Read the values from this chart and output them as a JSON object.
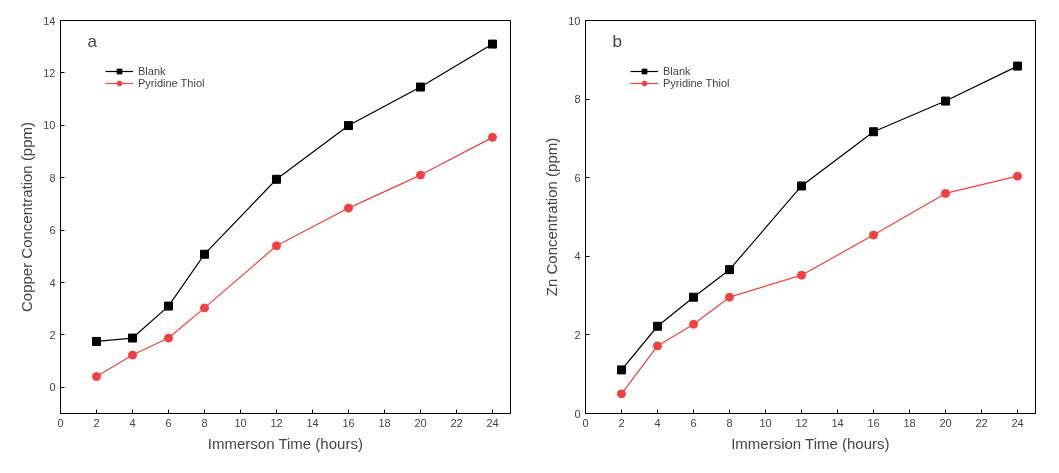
{
  "chart_data": [
    {
      "type": "line",
      "title": "a",
      "xlabel": "Immerson Time (hours)",
      "ylabel": "Copper Concentration (ppm)",
      "x": [
        2,
        4,
        6,
        8,
        12,
        16,
        20,
        24
      ],
      "xlim": [
        0,
        25
      ],
      "xticks": [
        0,
        2,
        4,
        6,
        8,
        10,
        12,
        14,
        16,
        18,
        20,
        22,
        24
      ],
      "ylim": [
        -1,
        14
      ],
      "yticks": [
        0,
        2,
        4,
        6,
        8,
        10,
        12,
        14
      ],
      "legend": "top left",
      "grid": false,
      "series": [
        {
          "name": "Blank",
          "color": "#000000",
          "marker": "square",
          "values": [
            1.75,
            1.88,
            3.1,
            5.08,
            7.94,
            9.99,
            11.46,
            13.1
          ]
        },
        {
          "name": "Pyridine Thiol",
          "color": "#f04040",
          "marker": "circle",
          "values": [
            0.41,
            1.23,
            1.88,
            3.03,
            5.4,
            6.84,
            8.1,
            9.54
          ]
        }
      ]
    },
    {
      "type": "line",
      "title": "b",
      "xlabel": "Immersion Time (hours)",
      "ylabel": "Zn Concentration (ppm)",
      "x": [
        2,
        4,
        6,
        8,
        12,
        16,
        20,
        24
      ],
      "xlim": [
        0,
        25
      ],
      "xticks": [
        0,
        2,
        4,
        6,
        8,
        10,
        12,
        14,
        16,
        18,
        20,
        22,
        24
      ],
      "ylim": [
        0,
        10
      ],
      "yticks": [
        0,
        2,
        4,
        6,
        8,
        10
      ],
      "legend": "top left",
      "grid": false,
      "series": [
        {
          "name": "Blank",
          "color": "#000000",
          "marker": "square",
          "values": [
            1.11,
            2.22,
            2.96,
            3.66,
            5.79,
            7.17,
            7.95,
            8.84
          ]
        },
        {
          "name": "Pyridine Thiol",
          "color": "#f04040",
          "marker": "circle",
          "values": [
            0.5,
            1.72,
            2.27,
            2.96,
            3.52,
            4.54,
            5.6,
            6.04
          ]
        }
      ]
    }
  ]
}
